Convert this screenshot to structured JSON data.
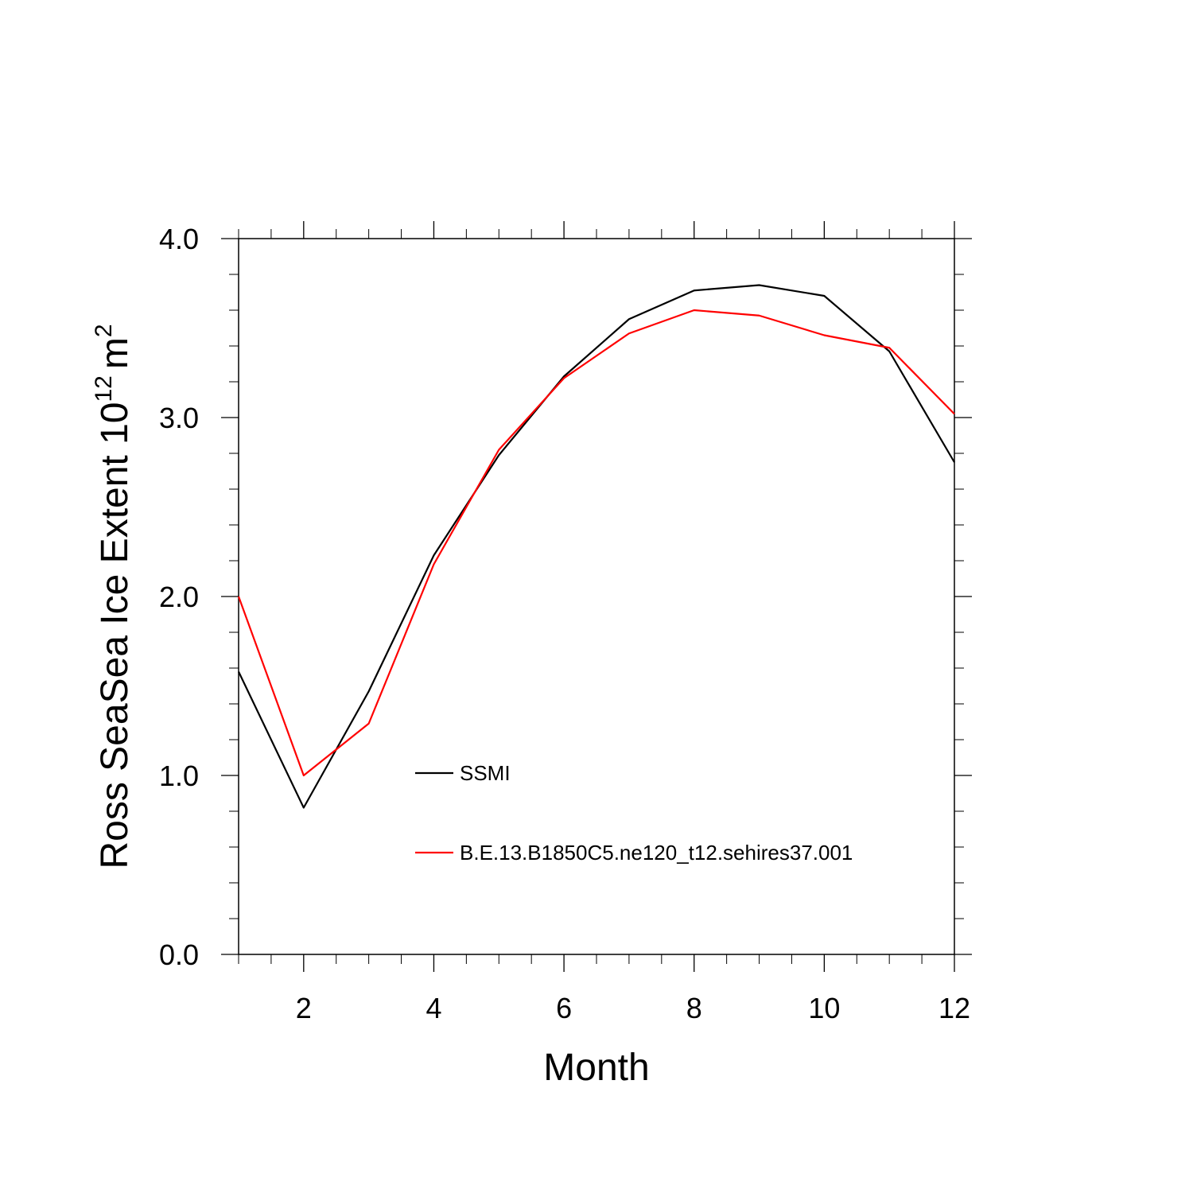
{
  "chart_data": {
    "type": "line",
    "title": "",
    "xlabel": "Month",
    "ylabel_main": "Ross SeaSea Ice Extent 10",
    "ylabel_exponent": "12",
    "ylabel_unit": "m",
    "ylabel_unit_exponent": "2",
    "xlim": [
      1,
      12
    ],
    "ylim": [
      0,
      4
    ],
    "x": [
      1,
      2,
      3,
      4,
      5,
      6,
      7,
      8,
      9,
      10,
      11,
      12
    ],
    "x_ticks": [
      2,
      4,
      6,
      8,
      10,
      12
    ],
    "x_tick_labels": [
      "2",
      "4",
      "6",
      "8",
      "10",
      "12"
    ],
    "y_ticks": [
      0,
      1,
      2,
      3,
      4
    ],
    "y_tick_labels": [
      "0.0",
      "1.0",
      "2.0",
      "3.0",
      "4.0"
    ],
    "grid": false,
    "legend_position": "center-right, inside plot",
    "series": [
      {
        "name": "SSMI",
        "color": "#000000",
        "values": [
          1.58,
          0.82,
          1.47,
          2.23,
          2.79,
          3.23,
          3.55,
          3.71,
          3.74,
          3.68,
          3.37,
          2.75
        ]
      },
      {
        "name": "B.E.13.B1850C5.ne120_t12.sehires37.001",
        "color": "#ff0000",
        "values": [
          2.0,
          1.0,
          1.29,
          2.18,
          2.82,
          3.22,
          3.47,
          3.6,
          3.57,
          3.46,
          3.39,
          3.02
        ]
      }
    ]
  }
}
